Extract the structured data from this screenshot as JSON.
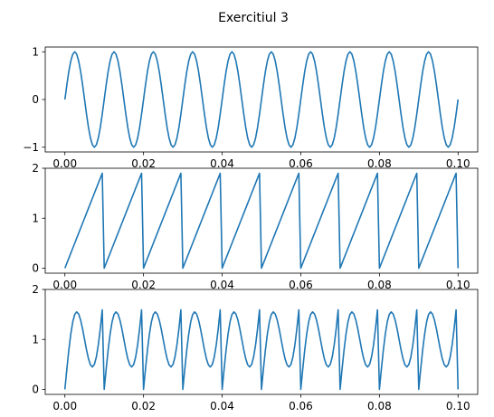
{
  "figure": {
    "title": "Exercitiul 3"
  },
  "colors": {
    "line": "#1f77b4",
    "axes": "#000000",
    "background": "#ffffff"
  },
  "chart_data": [
    {
      "type": "line",
      "title": "",
      "xlabel": "",
      "ylabel": "",
      "xlim": [
        -0.005,
        0.105
      ],
      "ylim": [
        -1.1,
        1.1
      ],
      "grid": false,
      "xticks": [
        "0.00",
        "0.02",
        "0.04",
        "0.06",
        "0.08",
        "0.10"
      ],
      "yticks": [
        "-1",
        "0",
        "1"
      ],
      "ytick_values": [
        -1,
        0,
        1
      ],
      "series": [
        {
          "formula": "sin(2*pi*100*t)",
          "x_start": 0,
          "x_end": 0.1,
          "samples": 201
        }
      ]
    },
    {
      "type": "line",
      "title": "",
      "xlabel": "",
      "ylabel": "",
      "xlim": [
        -0.005,
        0.105
      ],
      "ylim": [
        -0.1,
        2.0
      ],
      "grid": false,
      "xticks": [
        "0.00",
        "0.02",
        "0.04",
        "0.06",
        "0.08",
        "0.10"
      ],
      "yticks": [
        "0",
        "1",
        "2"
      ],
      "ytick_values": [
        0,
        1,
        2
      ],
      "series": [
        {
          "formula": "2*mod(100*t, 1)",
          "x_start": 0,
          "x_end": 0.1,
          "samples": 201
        }
      ]
    },
    {
      "type": "line",
      "title": "",
      "xlabel": "",
      "ylabel": "",
      "xlim": [
        -0.005,
        0.105
      ],
      "ylim": [
        -0.1,
        2.0
      ],
      "grid": false,
      "xticks": [
        "0.00",
        "0.02",
        "0.04",
        "0.06",
        "0.08",
        "0.10"
      ],
      "yticks": [
        "0",
        "1",
        "2"
      ],
      "ytick_values": [
        0,
        1,
        2
      ],
      "series": [
        {
          "formula": "sin(2*pi*100*t) + 2*mod(100*t, 1)",
          "x_start": 0,
          "x_end": 0.1,
          "samples": 201
        }
      ]
    }
  ]
}
